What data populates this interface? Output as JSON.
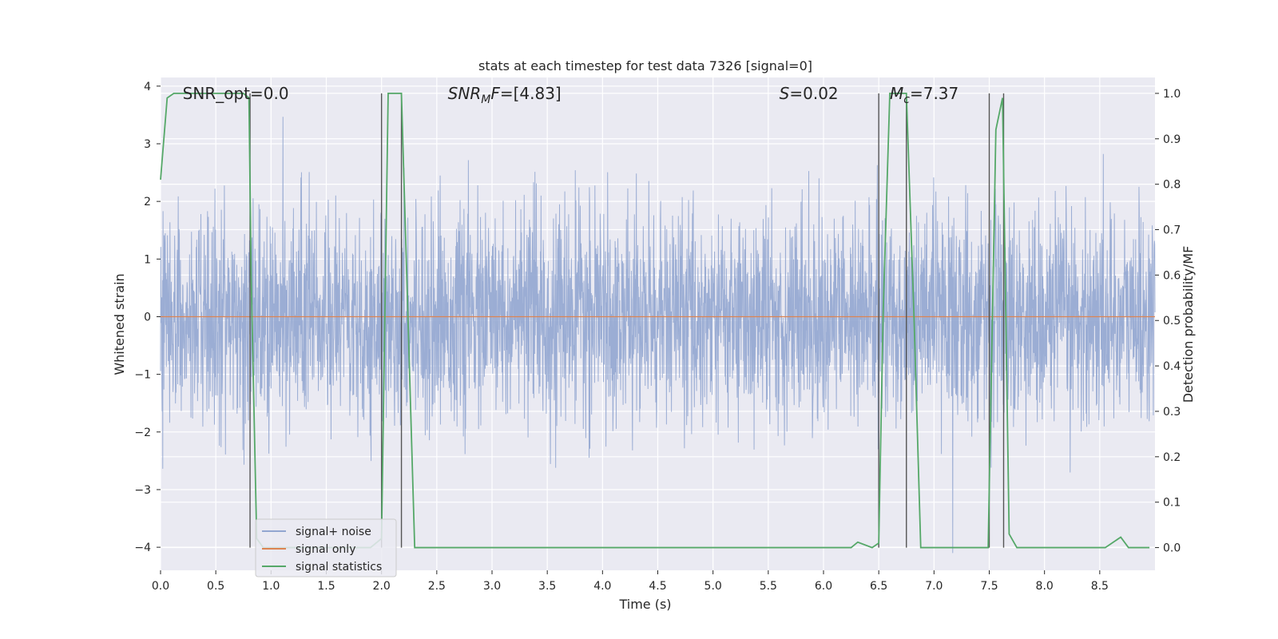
{
  "chart_data": {
    "type": "line",
    "title": "stats at each timestep for test data 7326 [signal=0]",
    "xlabel": "Time (s)",
    "ylabel_left": "Whitened strain",
    "ylabel_right": "Detection probability/MF",
    "xlim": [
      0.0,
      9.0
    ],
    "ylim_left": [
      -4.4,
      4.15
    ],
    "ylim_right": [
      -0.05,
      1.035
    ],
    "x_ticks": [
      "0.0",
      "0.5",
      "1.0",
      "1.5",
      "2.0",
      "2.5",
      "3.0",
      "3.5",
      "4.0",
      "4.5",
      "5.0",
      "5.5",
      "6.0",
      "6.5",
      "7.0",
      "7.5",
      "8.0",
      "8.5"
    ],
    "y_left_ticks": [
      "4",
      "3",
      "2",
      "1",
      "0",
      "−1",
      "−2",
      "−3",
      "−4"
    ],
    "y_right_ticks": [
      "1.0",
      "0.9",
      "0.8",
      "0.7",
      "0.6",
      "0.5",
      "0.4",
      "0.3",
      "0.2",
      "0.1",
      "0.0"
    ],
    "grid": true,
    "annotations": [
      {
        "text": "SNR_opt=0.0",
        "x": 0.2
      },
      {
        "text": "SNR_MF=[4.83]",
        "x": 2.6,
        "prefix": "SNR",
        "sub": "M",
        "suffix": "F=[4.83]"
      },
      {
        "text": "S=0.02",
        "x": 5.6,
        "italic": "S",
        "suffix": "=0.02"
      },
      {
        "text": "Mc=7.37",
        "x": 6.6,
        "italic": "M",
        "sub": "c",
        "suffix": "=7.37"
      }
    ],
    "vertical_lines": [
      0.81,
      2.0,
      2.18,
      6.5,
      6.75,
      7.5,
      7.63
    ],
    "series": [
      {
        "name": "signal+ noise",
        "color": "#92a6d0",
        "axis": "left",
        "noise_std": 0.9,
        "x_range": [
          0.0,
          9.0
        ]
      },
      {
        "name": "signal only",
        "color": "#dd8452",
        "axis": "left",
        "constant": 0.0
      },
      {
        "name": "signal statistics",
        "color": "#55a868",
        "axis": "right",
        "x": [
          0.0,
          0.06,
          0.12,
          0.2,
          0.4,
          0.6,
          0.75,
          0.8,
          0.82,
          0.87,
          0.93,
          1.0,
          1.5,
          1.9,
          2.0,
          2.06,
          2.1,
          2.18,
          2.24,
          2.3,
          3.0,
          4.0,
          5.0,
          6.0,
          6.25,
          6.31,
          6.44,
          6.5,
          6.54,
          6.6,
          6.75,
          6.82,
          6.88,
          7.0,
          7.3,
          7.49,
          7.56,
          7.62,
          7.68,
          7.75,
          8.0,
          8.55,
          8.69,
          8.76,
          8.95
        ],
        "y": [
          0.81,
          0.99,
          1.0,
          1.0,
          1.0,
          1.0,
          1.0,
          0.99,
          0.6,
          0.02,
          0.0,
          0.0,
          0.0,
          0.0,
          0.02,
          1.0,
          1.0,
          1.0,
          0.5,
          0.0,
          0.0,
          0.0,
          0.0,
          0.0,
          0.0,
          0.012,
          0.0,
          0.01,
          0.52,
          1.0,
          1.0,
          0.5,
          0.0,
          0.0,
          0.0,
          0.0,
          0.92,
          0.99,
          0.03,
          0.0,
          0.0,
          0.0,
          0.023,
          0.0,
          0.0
        ]
      }
    ],
    "legend": {
      "placement": "lower-left",
      "entries": [
        "signal+ noise",
        "signal only",
        "signal statistics"
      ]
    }
  }
}
